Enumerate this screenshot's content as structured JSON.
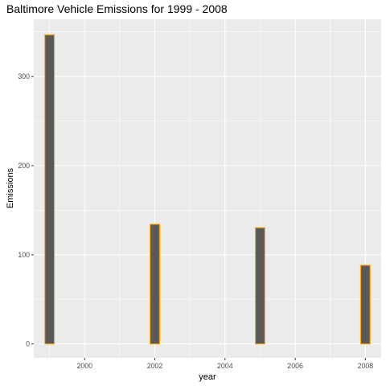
{
  "chart_data": {
    "type": "bar",
    "title": "Baltimore Vehicle Emissions for 1999 - 2008",
    "xlabel": "year",
    "ylabel": "Emissions",
    "x": [
      1999,
      2002,
      2005,
      2008
    ],
    "values": [
      346.82,
      134.31,
      130.43,
      88.28
    ],
    "xlim": [
      1998.55,
      2008.45
    ],
    "ylim": [
      -15.6,
      364.2
    ],
    "x_ticks": [
      2000,
      2002,
      2004,
      2006,
      2008
    ],
    "y_ticks": [
      0,
      100,
      200,
      300
    ],
    "grid": true,
    "colors": {
      "panel_background": "#ebebeb",
      "grid_line": "#ffffff",
      "bar_fill": "#595959",
      "bar_outline": "#ffa500",
      "tick_mark": "#333333"
    }
  }
}
